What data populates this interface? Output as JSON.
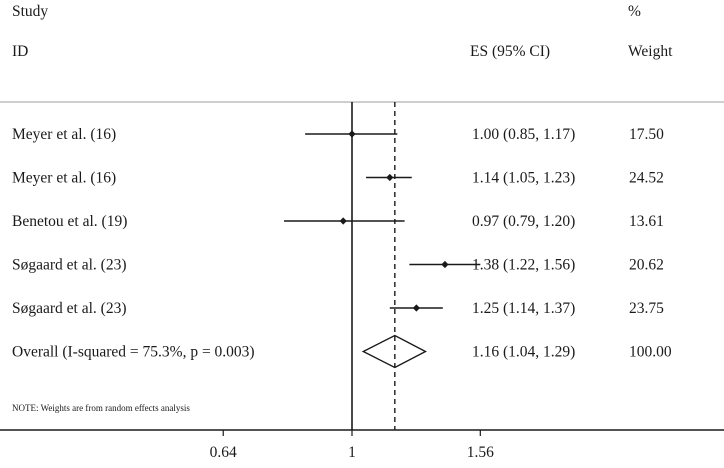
{
  "headers": {
    "study_top": "Study",
    "study_bottom": "ID",
    "es": "ES (95% CI)",
    "weight_top": "%",
    "weight_bottom": "Weight"
  },
  "chart_data": {
    "type": "forest",
    "null_value": 1,
    "overall_es": 1.16,
    "xticks": [
      0.64,
      1,
      1.56
    ],
    "xtick_labels": [
      "0.64",
      "1",
      "1.56"
    ],
    "xlim": [
      0.5,
      2.0
    ],
    "scale": "log",
    "studies": [
      {
        "label": "Meyer et al. (16)",
        "es": 1.0,
        "lo": 0.85,
        "hi": 1.17,
        "es_text": "1.00 (0.85, 1.17)",
        "weight": "17.50"
      },
      {
        "label": "Meyer et al. (16)",
        "es": 1.14,
        "lo": 1.05,
        "hi": 1.23,
        "es_text": "1.14 (1.05, 1.23)",
        "weight": "24.52"
      },
      {
        "label": "Benetou et al. (19)",
        "es": 0.97,
        "lo": 0.79,
        "hi": 1.2,
        "es_text": "0.97 (0.79, 1.20)",
        "weight": "13.61"
      },
      {
        "label": "Søgaard et al. (23)",
        "es": 1.38,
        "lo": 1.22,
        "hi": 1.56,
        "es_text": "1.38 (1.22, 1.56)",
        "weight": "20.62"
      },
      {
        "label": "Søgaard et al. (23)",
        "es": 1.25,
        "lo": 1.14,
        "hi": 1.37,
        "es_text": "1.25 (1.14, 1.37)",
        "weight": "23.75"
      }
    ],
    "overall": {
      "label": "Overall  (I-squared = 75.3%, p = 0.003)",
      "es": 1.16,
      "lo": 1.04,
      "hi": 1.29,
      "es_text": "1.16 (1.04, 1.29)",
      "weight": "100.00"
    },
    "note": "NOTE: Weights are from random effects analysis",
    "colors": {
      "line": "#1a1a1a",
      "separator": "#b0b0b0"
    }
  }
}
